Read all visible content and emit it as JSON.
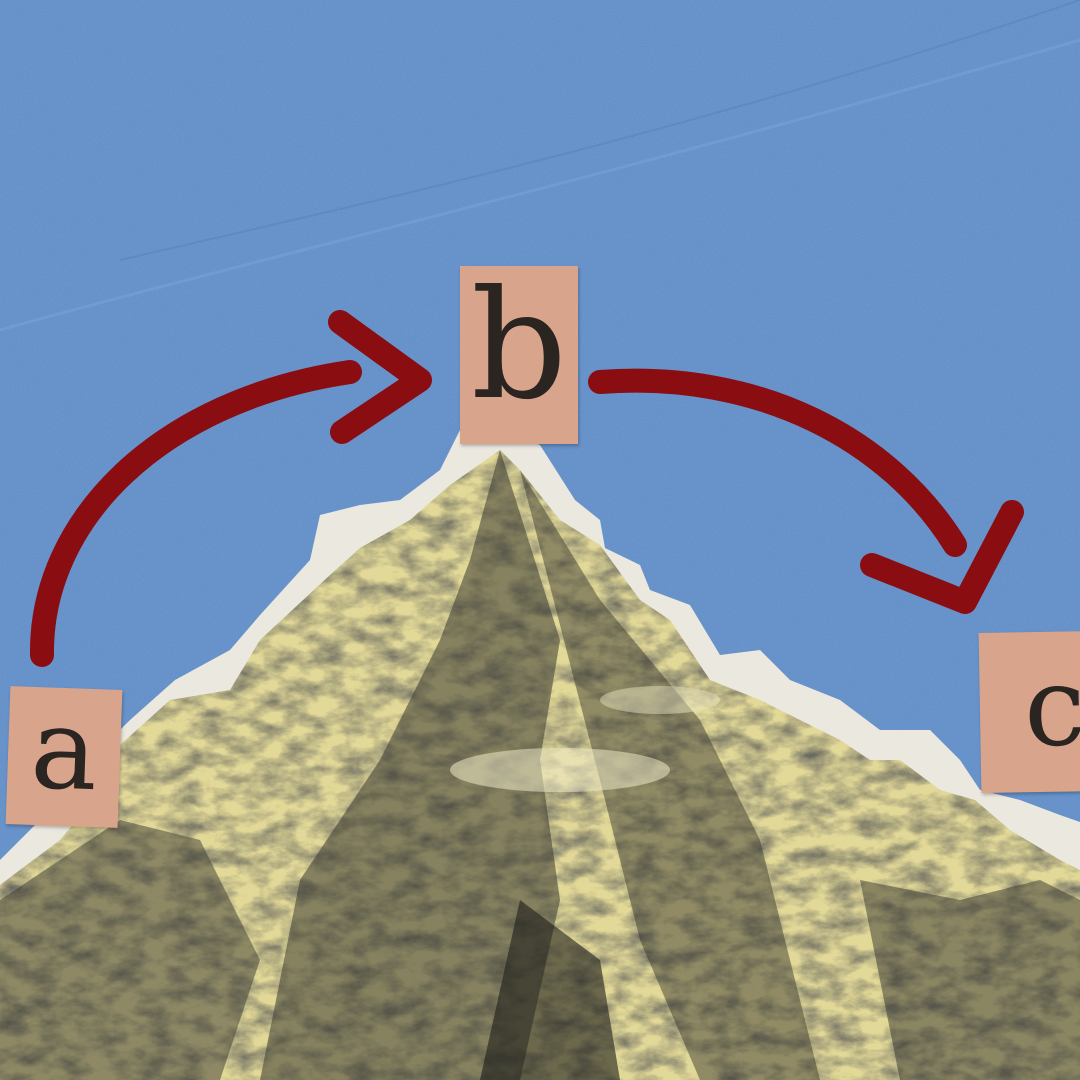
{
  "letters": {
    "a": "a",
    "b": "b",
    "c": "c"
  },
  "colors": {
    "sky": "#5d8bc6",
    "arrow": "#8a0d12",
    "tile": "#d9a48c",
    "torn_paper": "#ebe8df",
    "mountain_light": "#e6dd9e",
    "mountain_dark": "#2a2a24"
  },
  "icons": {
    "arrow_a_to_b": "arrow-icon",
    "arrow_b_to_c": "arrow-icon"
  }
}
